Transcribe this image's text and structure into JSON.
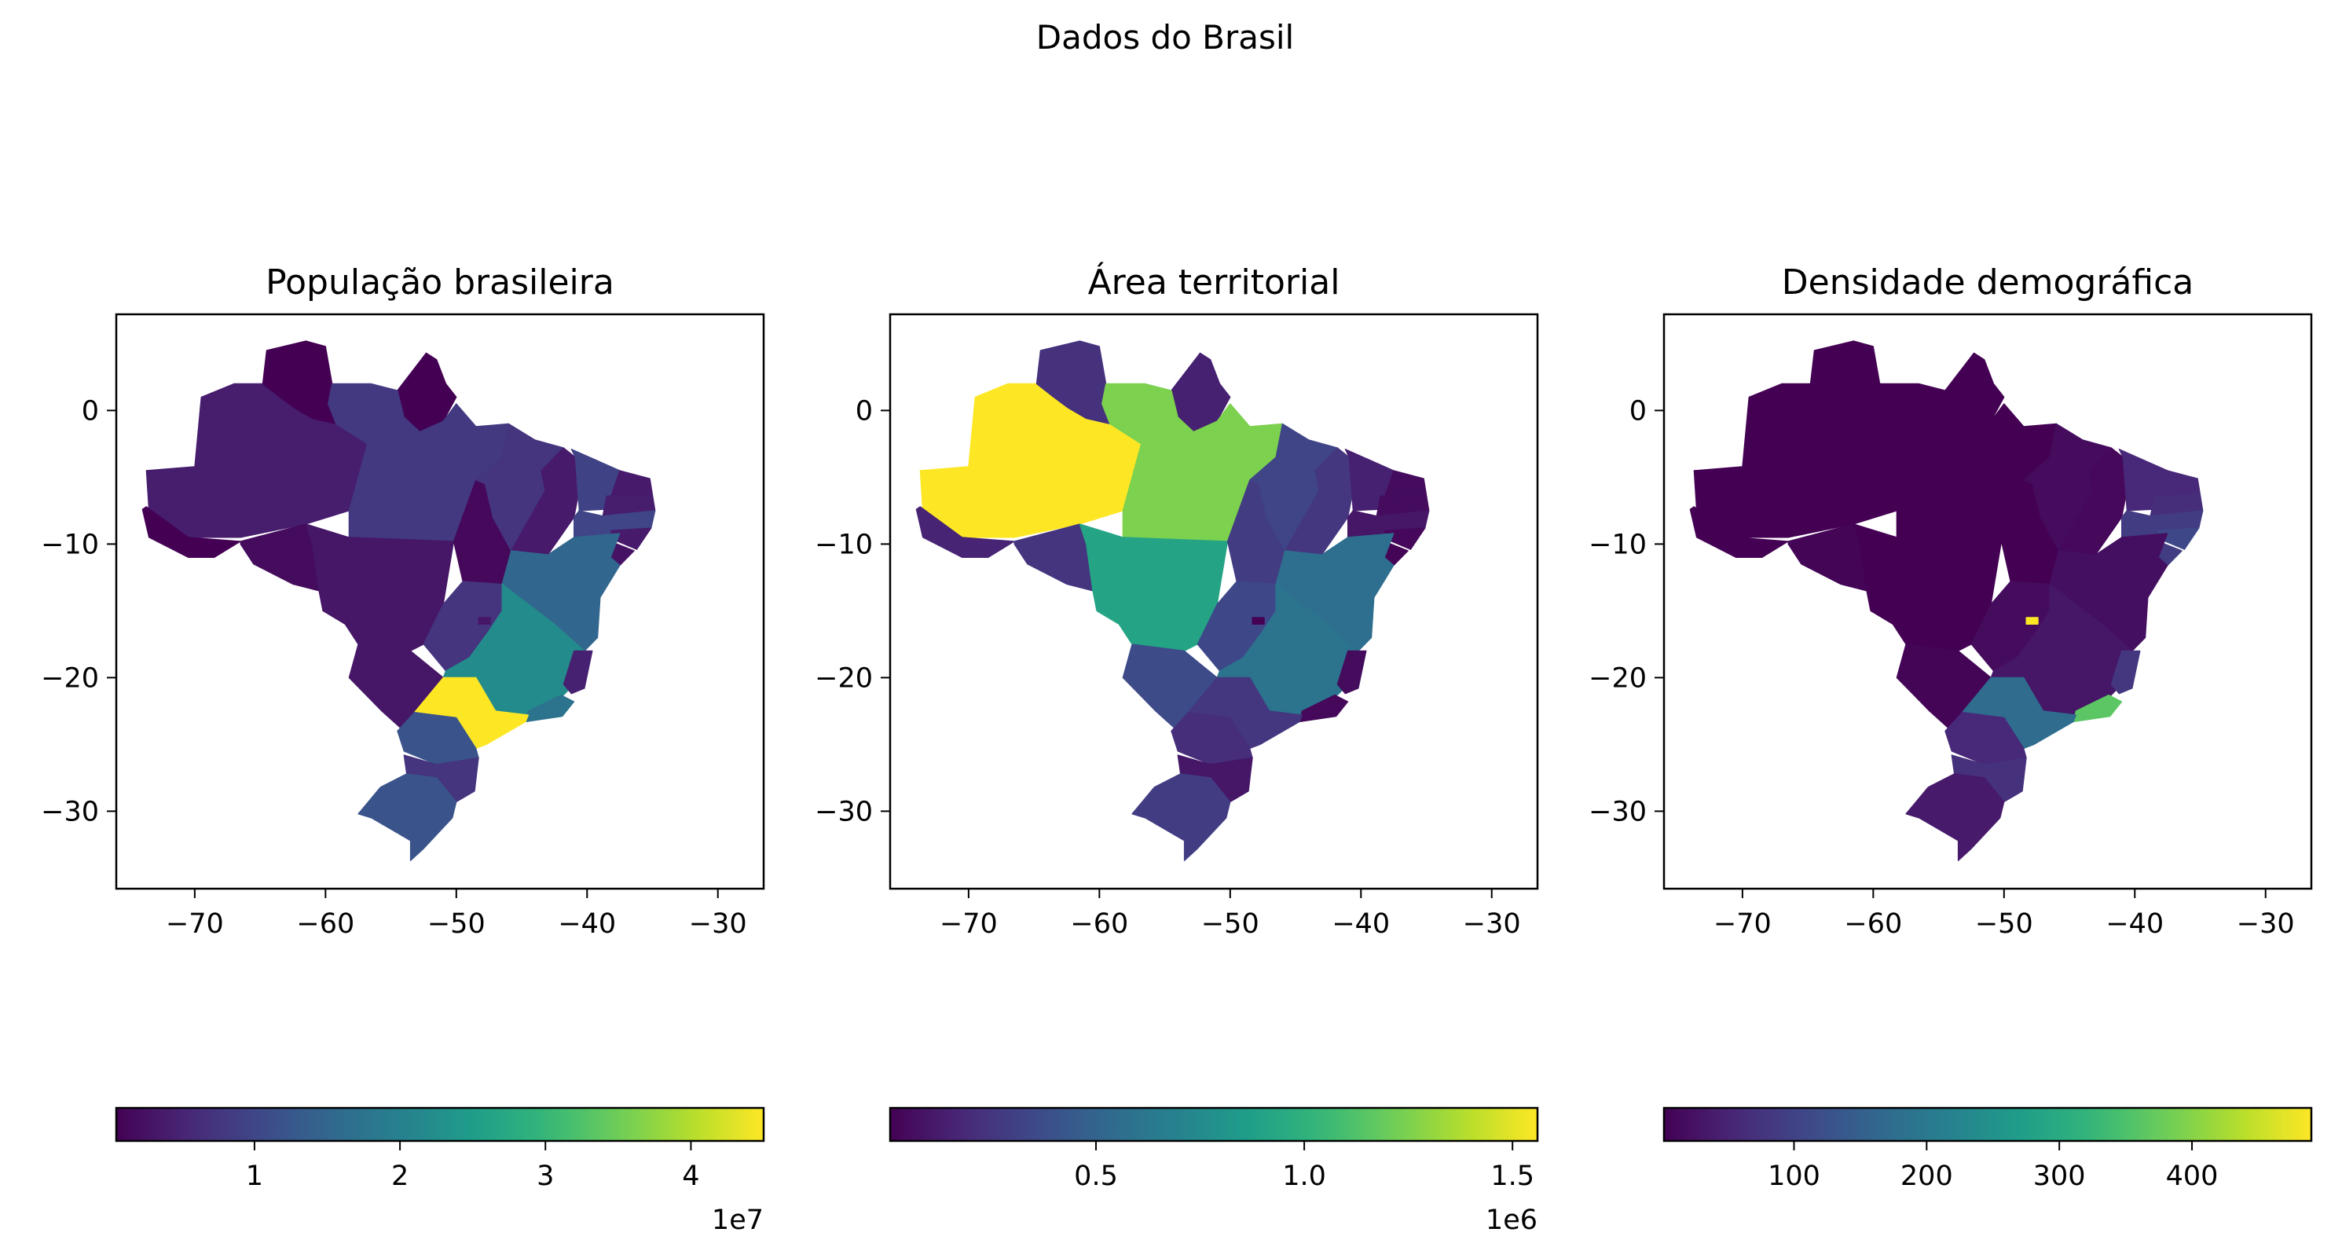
{
  "title": "Dados do Brasil",
  "panels": [
    {
      "title": "População brasileira",
      "colorbar": {
        "min": 500000,
        "max": 45000000,
        "ticks": [
          1,
          2,
          3,
          4
        ],
        "tick_labels": [
          "1",
          "2",
          "3",
          "4"
        ],
        "offset_label": "1e7"
      },
      "state_values": {
        "AM": 0.08,
        "RR": 0.0,
        "AP": 0.0,
        "PA": 0.17,
        "AC": 0.0,
        "RO": 0.03,
        "MT": 0.06,
        "TO": 0.02,
        "MA": 0.15,
        "PI": 0.07,
        "CE": 0.2,
        "RN": 0.07,
        "PB": 0.08,
        "PE": 0.21,
        "AL": 0.07,
        "SE": 0.05,
        "BA": 0.33,
        "GO": 0.15,
        "DF": 0.06,
        "MS": 0.06,
        "MG": 0.48,
        "SP": 1.0,
        "RJ": 0.38,
        "ES": 0.09,
        "PR": 0.26,
        "SC": 0.15,
        "RS": 0.26
      }
    },
    {
      "title": "Área territorial",
      "colorbar": {
        "min": 5800,
        "max": 1560000,
        "ticks": [
          0.5,
          1.0,
          1.5
        ],
        "tick_labels": [
          "0.5",
          "1.0",
          "1.5"
        ],
        "offset_label": "1e6"
      },
      "state_values": {
        "AM": 1.0,
        "RR": 0.14,
        "AP": 0.09,
        "PA": 0.8,
        "AC": 0.1,
        "RO": 0.15,
        "MT": 0.58,
        "TO": 0.18,
        "MA": 0.21,
        "PI": 0.16,
        "CE": 0.09,
        "RN": 0.03,
        "PB": 0.03,
        "PE": 0.06,
        "AL": 0.02,
        "SE": 0.01,
        "BA": 0.36,
        "GO": 0.22,
        "DF": 0.0,
        "MS": 0.23,
        "MG": 0.38,
        "SP": 0.16,
        "RJ": 0.02,
        "ES": 0.03,
        "PR": 0.13,
        "SC": 0.06,
        "RS": 0.18
      }
    },
    {
      "title": "Densidade demográfica",
      "colorbar": {
        "min": 2,
        "max": 490,
        "ticks": [
          100,
          200,
          300,
          400
        ],
        "tick_labels": [
          "100",
          "200",
          "300",
          "400"
        ],
        "offset_label": ""
      },
      "state_values": {
        "AM": 0.0,
        "RR": 0.0,
        "AP": 0.0,
        "PA": 0.0,
        "AC": 0.0,
        "RO": 0.01,
        "MT": 0.0,
        "TO": 0.0,
        "MA": 0.03,
        "PI": 0.02,
        "CE": 0.11,
        "RN": 0.11,
        "PB": 0.13,
        "PE": 0.18,
        "AL": 0.22,
        "SE": 0.18,
        "BA": 0.04,
        "GO": 0.03,
        "DF": 1.0,
        "MS": 0.01,
        "MG": 0.06,
        "SP": 0.35,
        "RJ": 0.74,
        "ES": 0.16,
        "PR": 0.11,
        "SC": 0.14,
        "RS": 0.07
      }
    }
  ],
  "axes": {
    "xticks": [
      -70,
      -60,
      -50,
      -40,
      -30
    ],
    "xtick_labels": [
      "−70",
      "−60",
      "−50",
      "−40",
      "−30"
    ],
    "yticks": [
      0,
      -10,
      -20,
      -30
    ],
    "ytick_labels": [
      "0",
      "−10",
      "−20",
      "−30"
    ],
    "xlim": [
      -76,
      -26.5
    ],
    "ylim": [
      -35.8,
      7.2
    ]
  },
  "colormap": "viridis"
}
